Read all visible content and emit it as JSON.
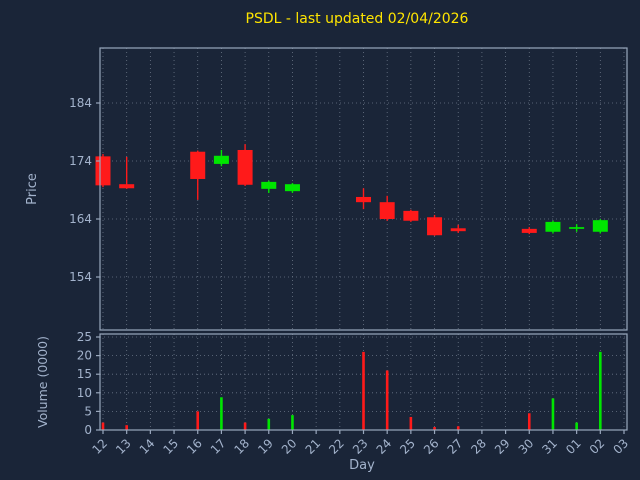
{
  "chart_data": {
    "type": "candlestick",
    "title": "PSDL - last updated 02/04/2026",
    "xlabel": "Day",
    "price_ylabel": "Price",
    "volume_ylabel": "Volume (0000)",
    "x_labels": [
      "12",
      "13",
      "14",
      "15",
      "16",
      "17",
      "18",
      "19",
      "20",
      "21",
      "22",
      "23",
      "24",
      "25",
      "26",
      "27",
      "28",
      "29",
      "30",
      "31",
      "01",
      "02",
      "03"
    ],
    "price_ticks": [
      154,
      164,
      174,
      184
    ],
    "price_range": [
      145,
      193.5
    ],
    "volume_ticks": [
      0,
      5,
      10,
      15,
      20,
      25
    ],
    "volume_range": [
      0,
      25.8
    ],
    "grid": true,
    "candles": [
      {
        "day": "12",
        "open": 174.8,
        "high": 175.2,
        "low": 169.5,
        "close": 169.8,
        "volume": 2.0
      },
      {
        "day": "13",
        "open": 170.0,
        "high": 174.7,
        "low": 169.2,
        "close": 169.3,
        "volume": 1.3
      },
      {
        "day": "16",
        "open": 175.6,
        "high": 175.8,
        "low": 167.3,
        "close": 170.9,
        "volume": 5.0
      },
      {
        "day": "17",
        "open": 173.5,
        "high": 175.9,
        "low": 173.1,
        "close": 174.9,
        "volume": 8.8
      },
      {
        "day": "18",
        "open": 175.9,
        "high": 176.9,
        "low": 169.7,
        "close": 169.9,
        "volume": 2.0
      },
      {
        "day": "19",
        "open": 169.2,
        "high": 170.6,
        "low": 168.5,
        "close": 170.4,
        "volume": 3.0
      },
      {
        "day": "20",
        "open": 168.8,
        "high": 170.2,
        "low": 168.5,
        "close": 170.0,
        "volume": 4.0
      },
      {
        "day": "23",
        "open": 167.8,
        "high": 169.3,
        "low": 165.7,
        "close": 166.9,
        "volume": 21.0
      },
      {
        "day": "24",
        "open": 166.9,
        "high": 168.0,
        "low": 163.7,
        "close": 164.0,
        "volume": 16.0
      },
      {
        "day": "25",
        "open": 165.4,
        "high": 165.6,
        "low": 163.5,
        "close": 163.7,
        "volume": 3.5
      },
      {
        "day": "26",
        "open": 164.3,
        "high": 164.7,
        "low": 161.1,
        "close": 161.2,
        "volume": 0.8
      },
      {
        "day": "27",
        "open": 162.4,
        "high": 163.0,
        "low": 161.6,
        "close": 161.9,
        "volume": 1.0
      },
      {
        "day": "30",
        "open": 162.3,
        "high": 162.6,
        "low": 161.4,
        "close": 161.6,
        "volume": 4.5
      },
      {
        "day": "31",
        "open": 161.8,
        "high": 163.7,
        "low": 161.5,
        "close": 163.5,
        "volume": 8.5
      },
      {
        "day": "01",
        "open": 162.3,
        "high": 163.1,
        "low": 161.8,
        "close": 162.6,
        "volume": 2.0
      },
      {
        "day": "02",
        "open": 161.8,
        "high": 164.0,
        "low": 161.5,
        "close": 163.8,
        "volume": 21.0
      }
    ],
    "colors": {
      "background": "#1a2538",
      "up": "#00e600",
      "down": "#ff1a1a",
      "title": "#ffe500",
      "tick_label": "#a3b3cc",
      "spine": "#9aa8bd",
      "grid": "#6b7687"
    },
    "legend": "none"
  }
}
